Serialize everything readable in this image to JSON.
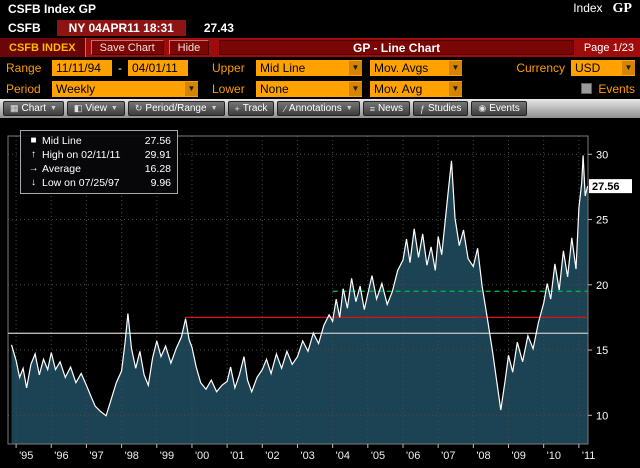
{
  "titlebar": {
    "left": "CSFB Index GP",
    "right_index": "Index",
    "right_gp": "GP"
  },
  "quote": {
    "ticker": "CSFB",
    "session": "NY 04APR11 18:31",
    "last": "27.43"
  },
  "redbar": {
    "tab": "CSFB INDEX",
    "save": "Save Chart",
    "hide": "Hide",
    "title": "GP - Line Chart",
    "page": "Page 1/23"
  },
  "controls": {
    "range_label": "Range",
    "range_start": "11/11/94",
    "range_dash": "-",
    "range_end": "04/01/11",
    "upper_label": "Upper",
    "upper_value": "Mid Line",
    "mov_avgs": "Mov. Avgs",
    "currency_label": "Currency",
    "currency_value": "USD",
    "period_label": "Period",
    "period_value": "Weekly",
    "lower_label": "Lower",
    "lower_value": "None",
    "mov_avg": "Mov. Avg",
    "events_label": "Events"
  },
  "toolbar": {
    "items": [
      {
        "name": "chart",
        "label": "Chart",
        "icon": "▦",
        "dropdown": true
      },
      {
        "name": "view",
        "label": "View",
        "icon": "◧",
        "dropdown": true
      },
      {
        "name": "period-range",
        "label": "Period/Range",
        "icon": "↻",
        "dropdown": true
      },
      {
        "name": "track",
        "label": "Track",
        "icon": "+",
        "dropdown": false
      },
      {
        "name": "annotations",
        "label": "Annotations",
        "icon": "∕",
        "dropdown": true
      },
      {
        "name": "news",
        "label": "News",
        "icon": "≡",
        "dropdown": false
      },
      {
        "name": "studies",
        "label": "Studies",
        "icon": "ƒ",
        "dropdown": false
      },
      {
        "name": "events",
        "label": "Events",
        "icon": "◉",
        "dropdown": false
      }
    ]
  },
  "legend": {
    "mid_line_label": "Mid Line",
    "mid_line_value": "27.56",
    "high_label": "High on 02/11/11",
    "high_value": "29.91",
    "avg_label": "Average",
    "avg_value": "16.28",
    "low_label": "Low on 07/25/97",
    "low_value": "9.96"
  },
  "chart_data": {
    "type": "line",
    "title": "GP - Line Chart",
    "security": "CSFB Index",
    "period": "Weekly",
    "xlim": [
      1994.77,
      2011.26
    ],
    "ylim": [
      7.8,
      31.4
    ],
    "y_ticks": [
      10,
      15,
      20,
      25,
      30
    ],
    "x_ticks": [
      "'95",
      "'96",
      "'97",
      "'98",
      "'99",
      "'00",
      "'01",
      "'02",
      "'03",
      "'04",
      "'05",
      "'06",
      "'07",
      "'08",
      "'09",
      "'10",
      "'11"
    ],
    "tick_start_year": 1995,
    "last_price": 27.56,
    "average": 16.28,
    "high": {
      "date": "02/11/11",
      "value": 29.91
    },
    "low": {
      "date": "07/25/97",
      "value": 9.96
    },
    "line_color": "#ffffff",
    "fill_color": "#1b4354",
    "grid_color": "#4a4a4a",
    "ref_lines": [
      {
        "value": 16.28,
        "color": "#b8b8b8",
        "from_year": 1994.77,
        "style": "solid",
        "name": "average-line"
      },
      {
        "value": 17.5,
        "color": "#dd1111",
        "from_year": 1999.8,
        "style": "solid",
        "name": "red-trend-line"
      },
      {
        "value": 19.5,
        "color": "#00b140",
        "from_year": 2004.0,
        "style": "dashed",
        "name": "green-dashed-line"
      }
    ],
    "x_years": [
      1994.87,
      1995.0,
      1995.1,
      1995.2,
      1995.3,
      1995.42,
      1995.54,
      1995.66,
      1995.78,
      1995.9,
      1996.0,
      1996.12,
      1996.25,
      1996.4,
      1996.55,
      1996.7,
      1996.85,
      1997.0,
      1997.12,
      1997.25,
      1997.4,
      1997.56,
      1997.7,
      1997.85,
      1998.0,
      1998.1,
      1998.18,
      1998.28,
      1998.4,
      1998.52,
      1998.64,
      1998.76,
      1998.88,
      1999.0,
      1999.12,
      1999.25,
      1999.4,
      1999.55,
      1999.7,
      1999.82,
      1999.92,
      2000.0,
      2000.12,
      2000.25,
      2000.4,
      2000.55,
      2000.7,
      2000.85,
      2001.0,
      2001.1,
      2001.22,
      2001.35,
      2001.48,
      2001.58,
      2001.7,
      2001.85,
      2002.0,
      2002.12,
      2002.25,
      2002.4,
      2002.55,
      2002.7,
      2002.85,
      2003.0,
      2003.15,
      2003.3,
      2003.45,
      2003.6,
      2003.75,
      2003.9,
      2004.0,
      2004.1,
      2004.2,
      2004.3,
      2004.42,
      2004.54,
      2004.66,
      2004.78,
      2004.9,
      2005.0,
      2005.12,
      2005.25,
      2005.4,
      2005.55,
      2005.7,
      2005.85,
      2006.0,
      2006.1,
      2006.2,
      2006.32,
      2006.44,
      2006.56,
      2006.68,
      2006.8,
      2006.92,
      2007.0,
      2007.1,
      2007.2,
      2007.3,
      2007.38,
      2007.48,
      2007.6,
      2007.72,
      2007.85,
      2008.0,
      2008.12,
      2008.25,
      2008.4,
      2008.55,
      2008.65,
      2008.78,
      2008.9,
      2009.0,
      2009.12,
      2009.25,
      2009.4,
      2009.55,
      2009.7,
      2009.85,
      2010.0,
      2010.1,
      2010.2,
      2010.32,
      2010.44,
      2010.56,
      2010.68,
      2010.8,
      2010.92,
      2011.0,
      2011.08,
      2011.12,
      2011.18,
      2011.25
    ],
    "values": [
      15.4,
      14.2,
      12.9,
      13.6,
      12.1,
      13.9,
      14.7,
      13.1,
      14.3,
      13.5,
      14.8,
      13.5,
      14.1,
      12.9,
      13.7,
      12.5,
      13.2,
      12.3,
      11.5,
      10.7,
      10.3,
      9.96,
      11.2,
      12.5,
      13.4,
      15.6,
      17.8,
      15.1,
      13.6,
      14.9,
      13.1,
      12.3,
      14.4,
      15.7,
      14.5,
      15.3,
      14.0,
      15.1,
      16.0,
      17.4,
      15.8,
      15.2,
      13.7,
      12.5,
      12.0,
      12.7,
      11.8,
      12.3,
      12.6,
      13.7,
      12.1,
      13.1,
      14.5,
      12.7,
      11.8,
      12.9,
      13.5,
      14.3,
      13.2,
      14.7,
      13.6,
      14.9,
      13.9,
      14.5,
      15.7,
      14.9,
      16.3,
      15.5,
      16.9,
      17.7,
      17.2,
      18.9,
      17.5,
      19.7,
      18.2,
      20.5,
      18.7,
      19.9,
      18.1,
      19.3,
      20.7,
      18.9,
      20.1,
      18.5,
      19.5,
      21.1,
      21.9,
      23.5,
      21.7,
      24.3,
      22.1,
      23.9,
      21.5,
      22.9,
      21.1,
      23.7,
      22.3,
      24.9,
      27.5,
      29.5,
      25.1,
      23.0,
      24.2,
      22.0,
      21.4,
      22.8,
      19.9,
      17.4,
      14.8,
      12.9,
      10.4,
      12.6,
      14.6,
      13.3,
      15.6,
      14.1,
      16.1,
      15.1,
      17.1,
      18.6,
      20.1,
      18.9,
      21.6,
      19.6,
      22.6,
      20.6,
      23.6,
      21.2,
      25.9,
      27.8,
      29.91,
      26.8,
      27.56
    ]
  }
}
